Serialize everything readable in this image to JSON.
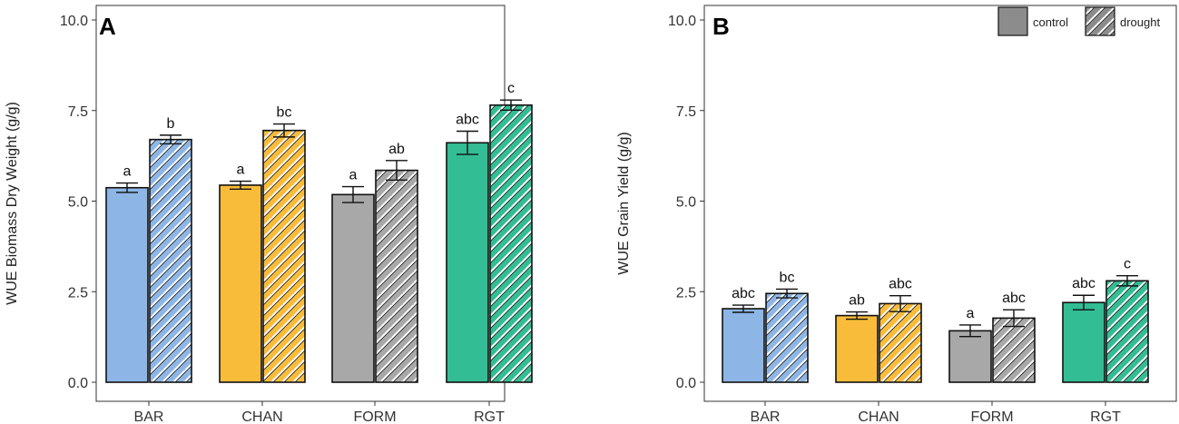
{
  "chart_data": [
    {
      "type": "bar",
      "panel_label": "A",
      "title": "",
      "xlabel": "",
      "ylabel": "WUE Biomass Dry Weight (g/g)",
      "ylim": [
        0,
        10.5
      ],
      "yticks": [
        0,
        2.5,
        5,
        7.5,
        10
      ],
      "ytick_labels": [
        "0.0",
        "2.5",
        "5.0",
        "7.5",
        "10.0"
      ],
      "categories": [
        "BAR",
        "CHAN",
        "FORM",
        "RGT"
      ],
      "category_colors": [
        "#8db6e6",
        "#f9bc3a",
        "#a8a8a8",
        "#33bd94"
      ],
      "series": [
        {
          "name": "control",
          "pattern": "solid",
          "values": [
            5.37,
            5.44,
            5.18,
            6.61
          ],
          "errors": [
            0.13,
            0.11,
            0.22,
            0.32
          ],
          "letters": [
            "a",
            "a",
            "a",
            "abc"
          ]
        },
        {
          "name": "drought",
          "pattern": "hatched",
          "values": [
            6.7,
            6.95,
            5.85,
            7.65
          ],
          "errors": [
            0.12,
            0.18,
            0.27,
            0.14
          ],
          "letters": [
            "b",
            "bc",
            "ab",
            "c"
          ]
        }
      ],
      "legend": null
    },
    {
      "type": "bar",
      "panel_label": "B",
      "title": "",
      "xlabel": "",
      "ylabel": "WUE Grain Yield (g/g)",
      "ylim": [
        0,
        10.5
      ],
      "yticks": [
        0,
        2.5,
        5,
        7.5,
        10
      ],
      "ytick_labels": [
        "0.0",
        "2.5",
        "5.0",
        "7.5",
        "10.0"
      ],
      "categories": [
        "BAR",
        "CHAN",
        "FORM",
        "RGT"
      ],
      "category_colors": [
        "#8db6e6",
        "#f9bc3a",
        "#a8a8a8",
        "#33bd94"
      ],
      "series": [
        {
          "name": "control",
          "pattern": "solid",
          "values": [
            2.03,
            1.84,
            1.42,
            2.2
          ],
          "errors": [
            0.1,
            0.1,
            0.16,
            0.2
          ],
          "letters": [
            "abc",
            "ab",
            "a",
            "abc"
          ]
        },
        {
          "name": "drought",
          "pattern": "hatched",
          "values": [
            2.45,
            2.17,
            1.77,
            2.8
          ],
          "errors": [
            0.12,
            0.22,
            0.23,
            0.14
          ],
          "letters": [
            "bc",
            "abc",
            "abc",
            "c"
          ]
        }
      ],
      "legend": {
        "placement": "top-right",
        "items": [
          "control",
          "drought"
        ],
        "swatch_color": "#8c8c8c"
      }
    }
  ]
}
